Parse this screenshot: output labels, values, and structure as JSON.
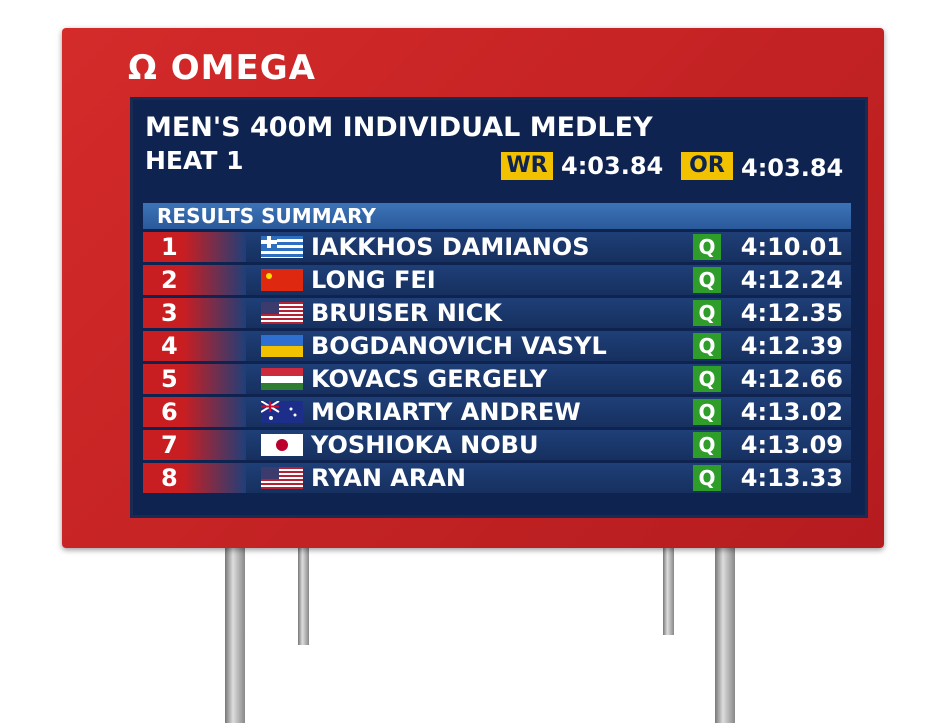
{
  "brand": {
    "symbol": "Ω",
    "name": "OMEGA"
  },
  "header": {
    "title": "MEN'S 400M INDIVIDUAL MEDLEY",
    "subtitle": "HEAT 1",
    "records": [
      {
        "label": "WR",
        "time": "4:03.84"
      },
      {
        "label": "OR",
        "time": "4:03.84"
      }
    ]
  },
  "table": {
    "title": "RESULTS SUMMARY",
    "rows": [
      {
        "rank": 1,
        "name": "IAKKHOS DAMIANOS",
        "status": "Q",
        "time": "4:10.01"
      },
      {
        "rank": 2,
        "name": "LONG FEI",
        "status": "Q",
        "time": "4:12.24"
      },
      {
        "rank": 3,
        "name": "BRUISER NICK",
        "status": "Q",
        "time": "4:12.35"
      },
      {
        "rank": 4,
        "name": "BOGDANOVICH VASYL",
        "status": "Q",
        "time": "4:12.39"
      },
      {
        "rank": 5,
        "name": "KOVACS GERGELY",
        "status": "Q",
        "time": "4:12.66"
      },
      {
        "rank": 6,
        "name": "MORIARTY ANDREW",
        "status": "Q",
        "time": "4:13.02"
      },
      {
        "rank": 7,
        "name": "YOSHIOKA NOBU",
        "status": "Q",
        "time": "4:13.09"
      },
      {
        "rank": 8,
        "name": "RYAN ARAN",
        "status": "Q",
        "time": "4:13.33"
      }
    ]
  }
}
